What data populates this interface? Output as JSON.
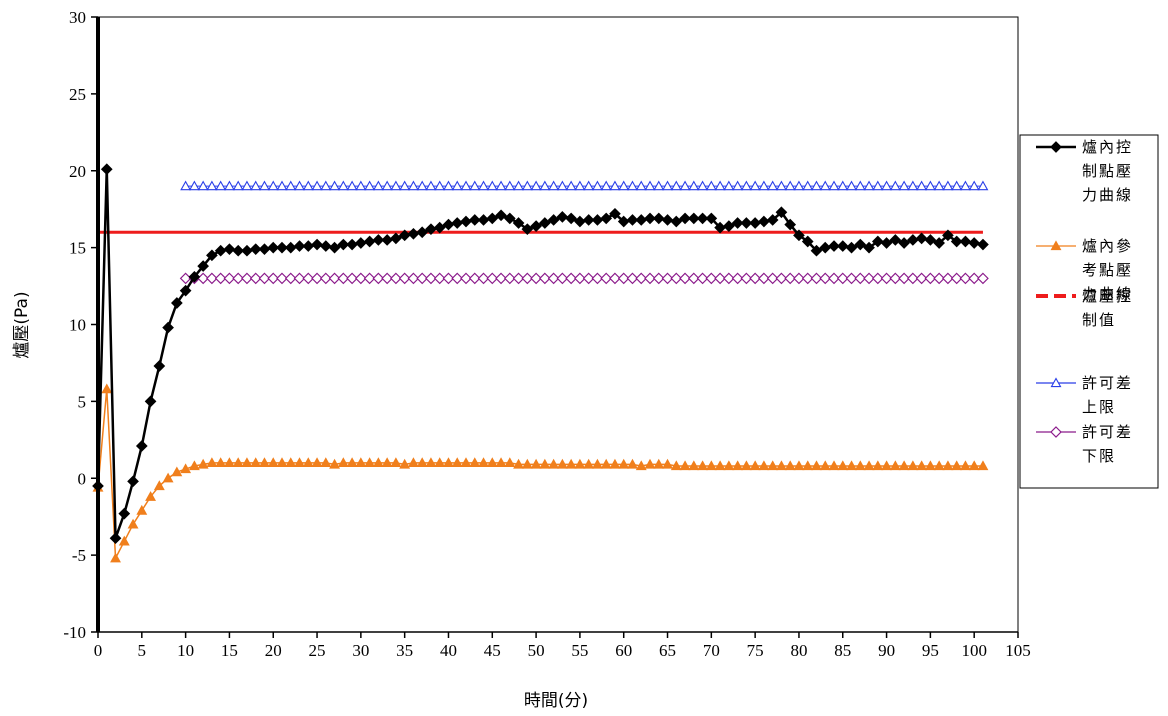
{
  "chart_data": {
    "type": "line",
    "title": "",
    "xlabel": "時間(分)",
    "ylabel": "爐壓(Pa)",
    "xlim": [
      0,
      105
    ],
    "ylim": [
      -10,
      30
    ],
    "x_ticks": [
      "0",
      "5",
      "10",
      "15",
      "20",
      "25",
      "30",
      "35",
      "40",
      "45",
      "50",
      "55",
      "60",
      "65",
      "70",
      "75",
      "80",
      "85",
      "90",
      "95",
      "100",
      "105"
    ],
    "y_ticks": [
      "-10",
      "-5",
      "0",
      "5",
      "10",
      "15",
      "20",
      "25",
      "30"
    ],
    "grid": false,
    "legend_position": "right",
    "series": [
      {
        "name": "爐內控制點壓力曲線",
        "legend_lines": [
          "爐內控",
          "制點壓",
          "力曲線"
        ],
        "color": "#000000",
        "marker": "diamond-filled",
        "x_start": 0,
        "x_step": 1,
        "values": [
          -0.5,
          20.1,
          -3.9,
          -2.3,
          -0.2,
          2.1,
          5.0,
          7.3,
          9.8,
          11.4,
          12.2,
          13.1,
          13.8,
          14.5,
          14.8,
          14.9,
          14.8,
          14.8,
          14.9,
          14.9,
          15.0,
          15.0,
          15.0,
          15.1,
          15.1,
          15.2,
          15.1,
          15.0,
          15.2,
          15.2,
          15.3,
          15.4,
          15.5,
          15.5,
          15.6,
          15.8,
          15.9,
          16.0,
          16.2,
          16.3,
          16.5,
          16.6,
          16.7,
          16.8,
          16.8,
          16.9,
          17.1,
          16.9,
          16.6,
          16.2,
          16.4,
          16.6,
          16.8,
          17.0,
          16.9,
          16.7,
          16.8,
          16.8,
          16.9,
          17.2,
          16.7,
          16.8,
          16.8,
          16.9,
          16.9,
          16.8,
          16.7,
          16.9,
          16.9,
          16.9,
          16.9,
          16.3,
          16.4,
          16.6,
          16.6,
          16.6,
          16.7,
          16.8,
          17.3,
          16.5,
          15.8,
          15.4,
          14.8,
          15.0,
          15.1,
          15.1,
          15.0,
          15.2,
          15.0,
          15.4,
          15.3,
          15.5,
          15.3,
          15.5,
          15.6,
          15.5,
          15.3,
          15.8,
          15.4,
          15.4,
          15.3,
          15.2
        ]
      },
      {
        "name": "爐內參考點壓力曲線",
        "legend_lines": [
          "爐內參",
          "考點壓",
          "力曲線"
        ],
        "color": "#f07f1c",
        "marker": "triangle-filled",
        "x_start": 0,
        "x_step": 1,
        "values": [
          -0.6,
          5.8,
          -5.2,
          -4.1,
          -3.0,
          -2.1,
          -1.2,
          -0.5,
          0.0,
          0.4,
          0.6,
          0.8,
          0.9,
          1.0,
          1.0,
          1.0,
          1.0,
          1.0,
          1.0,
          1.0,
          1.0,
          1.0,
          1.0,
          1.0,
          1.0,
          1.0,
          1.0,
          0.9,
          1.0,
          1.0,
          1.0,
          1.0,
          1.0,
          1.0,
          1.0,
          0.9,
          1.0,
          1.0,
          1.0,
          1.0,
          1.0,
          1.0,
          1.0,
          1.0,
          1.0,
          1.0,
          1.0,
          1.0,
          0.9,
          0.9,
          0.9,
          0.9,
          0.9,
          0.9,
          0.9,
          0.9,
          0.9,
          0.9,
          0.9,
          0.9,
          0.9,
          0.9,
          0.8,
          0.9,
          0.9,
          0.9,
          0.8,
          0.8,
          0.8,
          0.8,
          0.8,
          0.8,
          0.8,
          0.8,
          0.8,
          0.8,
          0.8,
          0.8,
          0.8,
          0.8,
          0.8,
          0.8,
          0.8,
          0.8,
          0.8,
          0.8,
          0.8,
          0.8,
          0.8,
          0.8,
          0.8,
          0.8,
          0.8,
          0.8,
          0.8,
          0.8,
          0.8,
          0.8,
          0.8,
          0.8,
          0.8,
          0.8
        ]
      },
      {
        "name": "爐壓控制值",
        "legend_lines": [
          "爐壓控",
          "制值"
        ],
        "color": "#ee1c1c",
        "marker": "none",
        "x": [
          0,
          101
        ],
        "values": [
          16,
          16
        ]
      },
      {
        "name": "許可差上限",
        "legend_lines": [
          "許可差",
          "上限"
        ],
        "color": "#2a3fe8",
        "marker": "triangle-open",
        "x_start": 10,
        "x_step": 1,
        "constant": 19,
        "count": 92
      },
      {
        "name": "許可差下限",
        "legend_lines": [
          "許可差",
          "下限"
        ],
        "color": "#8b1a8b",
        "marker": "diamond-open",
        "x_start": 10,
        "x_step": 1,
        "constant": 13,
        "count": 92
      }
    ]
  }
}
